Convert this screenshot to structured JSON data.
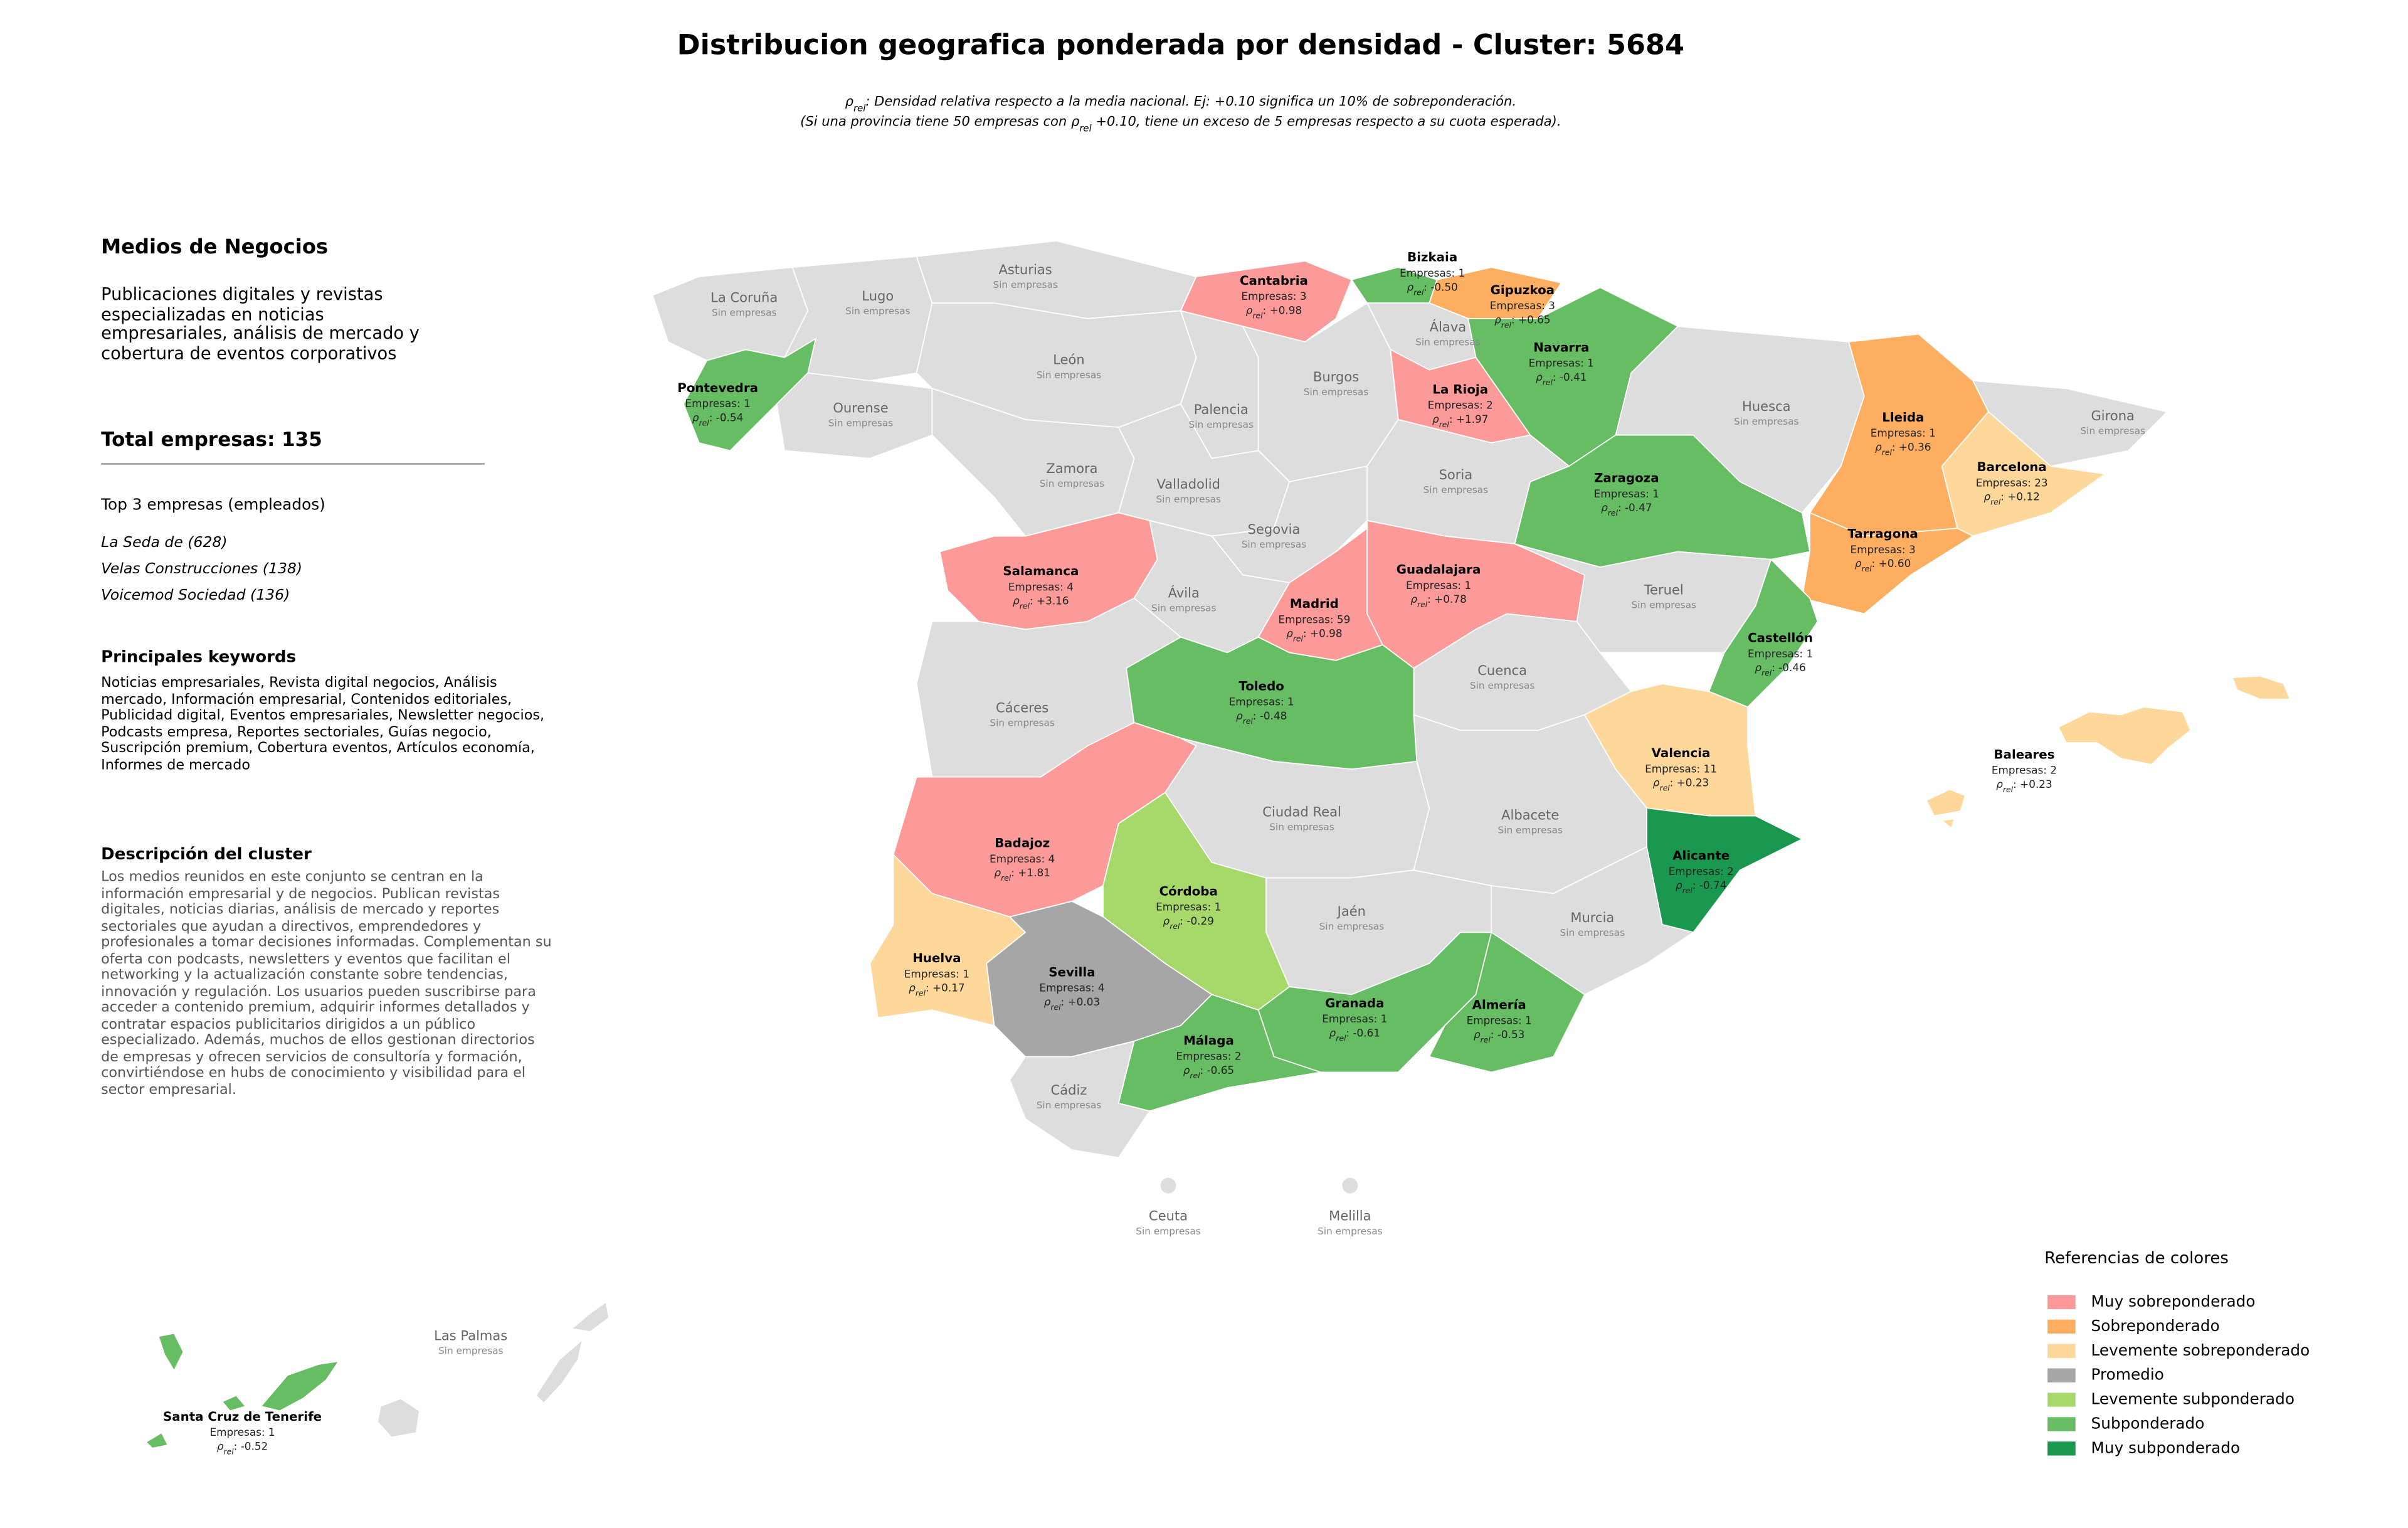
{
  "header": {
    "title": "Distribucion geografica ponderada por densidad - Cluster: 5684",
    "subtitle_line1": [
      "ρ",
      "rel",
      ": Densidad relativa respecto a la media nacional. Ej: +0.10 significa un 10% de sobreponderación."
    ],
    "subtitle_line2": [
      "(Si una provincia tiene 50 empresas con ",
      "ρ",
      "rel",
      " +0.10, tiene un exceso de 5 empresas respecto a su cuota esperada)."
    ]
  },
  "sidebar": {
    "title": "Medios de Negocios",
    "description": "Publicaciones digitales y revistas especializadas en noticias empresariales, análisis de mercado y cobertura de eventos corporativos",
    "total": "Total empresas: 135",
    "top_heading": "Top 3 empresas (empleados)",
    "top": [
      "La Seda de (628)",
      "Velas Construcciones (138)",
      "Voicemod Sociedad (136)"
    ],
    "keywords_heading": "Principales keywords",
    "keywords": "Noticias empresariales, Revista digital negocios, Análisis mercado, Información empresarial, Contenidos editoriales, Publicidad digital, Eventos empresariales, Newsletter negocios, Podcasts empresa, Reportes sectoriales, Guías negocio, Suscripción premium, Cobertura eventos, Artículos economía, Informes de mercado",
    "cluster_heading": "Descripción del cluster",
    "cluster_text": "Los medios reunidos en este conjunto se centran en la información empresarial y de negocios. Publican revistas digitales, noticias diarias, análisis de mercado y reportes sectoriales que ayudan a directivos, emprendedores y profesionales a tomar decisiones informadas. Complementan su oferta con podcasts, newsletters y eventos que facilitan el networking y la actualización constante sobre tendencias, innovación y regulación. Los usuarios pueden suscribirse para acceder a contenido premium, adquirir informes detallados y contratar espacios publicitarios dirigidos a un público especializado. Además, muchos de ellos gestionan directorios de empresas y ofrecen servicios de consultoría y formación, convirtiéndose en hubs de conocimiento y visibilidad para el sector empresarial."
  },
  "labels": {
    "rho_symbol": "ρ",
    "rho_sub": "rel",
    "rho_colon": ": "
  },
  "settings": {
    "empty_color": "#dddddd"
  },
  "legend": {
    "title": "Referencias de colores",
    "items": [
      {
        "name": "Muy sobreponderado",
        "color": "#fb9a99"
      },
      {
        "name": "Sobreponderado",
        "color": "#fdae61"
      },
      {
        "name": "Levemente sobreponderado",
        "color": "#fed89a"
      },
      {
        "name": "Promedio",
        "color": "#a6a6a6"
      },
      {
        "name": "Levemente subponderado",
        "color": "#a6d96a"
      },
      {
        "name": "Subponderado",
        "color": "#66bd63"
      },
      {
        "name": "Muy subponderado",
        "color": "#1a9850"
      }
    ]
  },
  "provinces": [
    {
      "name": "La Coruña",
      "status": "Sin empresas"
    },
    {
      "name": "Lugo",
      "status": "Sin empresas"
    },
    {
      "name": "Asturias",
      "status": "Sin empresas"
    },
    {
      "name": "Cantabria",
      "empresas": "Empresas: 3",
      "rho": "+0.98",
      "category": "Muy sobreponderado"
    },
    {
      "name": "Bizkaia",
      "empresas": "Empresas: 1",
      "rho": "-0.50",
      "category": "Subponderado"
    },
    {
      "name": "Gipuzkoa",
      "empresas": "Empresas: 3",
      "rho": "+0.65",
      "category": "Sobreponderado"
    },
    {
      "name": "Álava",
      "status": "Sin empresas"
    },
    {
      "name": "Navarra",
      "empresas": "Empresas: 1",
      "rho": "-0.41",
      "category": "Subponderado"
    },
    {
      "name": "La Rioja",
      "empresas": "Empresas: 2",
      "rho": "+1.97",
      "category": "Muy sobreponderado"
    },
    {
      "name": "Pontevedra",
      "empresas": "Empresas: 1",
      "rho": "-0.54",
      "category": "Subponderado"
    },
    {
      "name": "Ourense",
      "status": "Sin empresas"
    },
    {
      "name": "León",
      "status": "Sin empresas"
    },
    {
      "name": "Palencia",
      "status": "Sin empresas"
    },
    {
      "name": "Burgos",
      "status": "Sin empresas"
    },
    {
      "name": "Huesca",
      "status": "Sin empresas"
    },
    {
      "name": "Lleida",
      "empresas": "Empresas: 1",
      "rho": "+0.36",
      "category": "Sobreponderado"
    },
    {
      "name": "Girona",
      "status": "Sin empresas"
    },
    {
      "name": "Barcelona",
      "empresas": "Empresas: 23",
      "rho": "+0.12",
      "category": "Levemente sobreponderado"
    },
    {
      "name": "Tarragona",
      "empresas": "Empresas: 3",
      "rho": "+0.60",
      "category": "Sobreponderado"
    },
    {
      "name": "Zaragoza",
      "empresas": "Empresas: 1",
      "rho": "-0.47",
      "category": "Subponderado"
    },
    {
      "name": "Soria",
      "status": "Sin empresas"
    },
    {
      "name": "Zamora",
      "status": "Sin empresas"
    },
    {
      "name": "Valladolid",
      "status": "Sin empresas"
    },
    {
      "name": "Segovia",
      "status": "Sin empresas"
    },
    {
      "name": "Salamanca",
      "empresas": "Empresas: 4",
      "rho": "+3.16",
      "category": "Muy sobreponderado"
    },
    {
      "name": "Ávila",
      "status": "Sin empresas"
    },
    {
      "name": "Madrid",
      "empresas": "Empresas: 59",
      "rho": "+0.98",
      "category": "Muy sobreponderado"
    },
    {
      "name": "Guadalajara",
      "empresas": "Empresas: 1",
      "rho": "+0.78",
      "category": "Muy sobreponderado"
    },
    {
      "name": "Teruel",
      "status": "Sin empresas"
    },
    {
      "name": "Castellón",
      "empresas": "Empresas: 1",
      "rho": "-0.46",
      "category": "Subponderado"
    },
    {
      "name": "Cuenca",
      "status": "Sin empresas"
    },
    {
      "name": "Cáceres",
      "status": "Sin empresas"
    },
    {
      "name": "Toledo",
      "empresas": "Empresas: 1",
      "rho": "-0.48",
      "category": "Subponderado"
    },
    {
      "name": "Valencia",
      "empresas": "Empresas: 11",
      "rho": "+0.23",
      "category": "Levemente sobreponderado"
    },
    {
      "name": "Badajoz",
      "empresas": "Empresas: 4",
      "rho": "+1.81",
      "category": "Muy sobreponderado"
    },
    {
      "name": "Ciudad Real",
      "status": "Sin empresas"
    },
    {
      "name": "Albacete",
      "status": "Sin empresas"
    },
    {
      "name": "Alicante",
      "empresas": "Empresas: 2",
      "rho": "-0.74",
      "category": "Muy subponderado"
    },
    {
      "name": "Córdoba",
      "empresas": "Empresas: 1",
      "rho": "-0.29",
      "category": "Levemente subponderado"
    },
    {
      "name": "Jaén",
      "status": "Sin empresas"
    },
    {
      "name": "Murcia",
      "status": "Sin empresas"
    },
    {
      "name": "Huelva",
      "empresas": "Empresas: 1",
      "rho": "+0.17",
      "category": "Levemente sobreponderado"
    },
    {
      "name": "Sevilla",
      "empresas": "Empresas: 4",
      "rho": "+0.03",
      "category": "Promedio"
    },
    {
      "name": "Granada",
      "empresas": "Empresas: 1",
      "rho": "-0.61",
      "category": "Subponderado"
    },
    {
      "name": "Almería",
      "empresas": "Empresas: 1",
      "rho": "-0.53",
      "category": "Subponderado"
    },
    {
      "name": "Málaga",
      "empresas": "Empresas: 2",
      "rho": "-0.65",
      "category": "Subponderado"
    },
    {
      "name": "Cádiz",
      "status": "Sin empresas"
    },
    {
      "name": "Baleares",
      "empresas": "Empresas: 2",
      "rho": "+0.23",
      "category": "Levemente sobreponderado"
    },
    {
      "name": "Ceuta",
      "status": "Sin empresas"
    },
    {
      "name": "Melilla",
      "status": "Sin empresas"
    },
    {
      "name": "Las Palmas",
      "status": "Sin empresas"
    },
    {
      "name": "Santa Cruz de Tenerife",
      "empresas": "Empresas: 1",
      "rho": "-0.52",
      "category": "Subponderado"
    }
  ]
}
